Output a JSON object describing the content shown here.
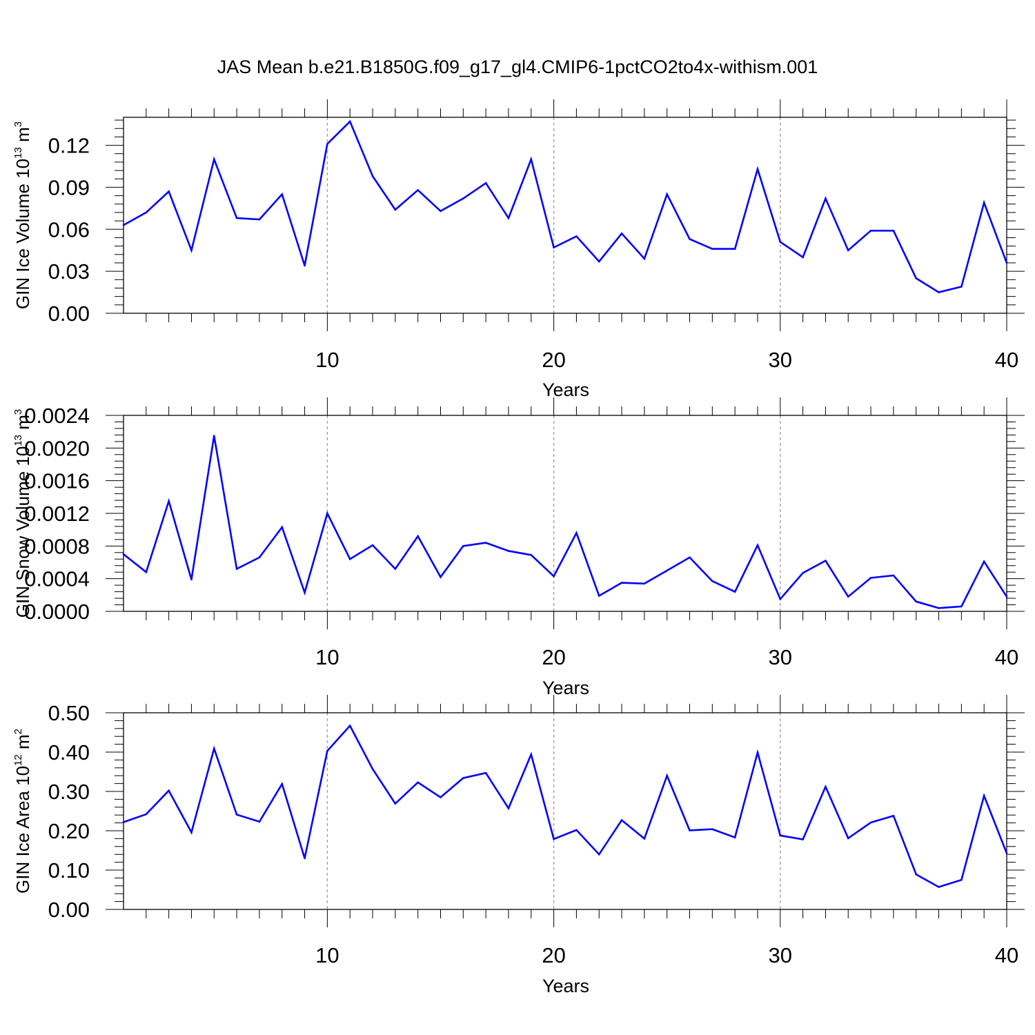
{
  "title": "JAS Mean b.e21.B1850G.f09_g17_gl4.CMIP6-1pctCO2to4x-withism.001",
  "colors": {
    "line": "#0000ff",
    "axis": "#000000",
    "grid": "#999999",
    "background": "#ffffff"
  },
  "chart_data": [
    {
      "type": "line",
      "xlabel": "Years",
      "ylabel": {
        "main": "GIN Ice Volume 10",
        "sup": "13",
        "rest": " m",
        "sup2": "3"
      },
      "xlim": [
        1,
        40
      ],
      "ylim": [
        0,
        0.14
      ],
      "xticks": [
        10,
        20,
        30,
        40
      ],
      "xtick_labels": [
        "10",
        "20",
        "30",
        "40"
      ],
      "yticks": [
        0,
        0.03,
        0.06,
        0.09,
        0.12
      ],
      "ytick_labels": [
        "0.00",
        "0.03",
        "0.06",
        "0.09",
        "0.12"
      ],
      "grid": "vertical dashed at 10, 20, 30",
      "x": [
        1,
        2,
        3,
        4,
        5,
        6,
        7,
        8,
        9,
        10,
        11,
        12,
        13,
        14,
        15,
        16,
        17,
        18,
        19,
        20,
        21,
        22,
        23,
        24,
        25,
        26,
        27,
        28,
        29,
        30,
        31,
        32,
        33,
        34,
        35,
        36,
        37,
        38,
        39,
        40
      ],
      "series": [
        {
          "values": [
            0.063,
            0.072,
            0.087,
            0.045,
            0.11,
            0.068,
            0.067,
            0.085,
            0.034,
            0.121,
            0.137,
            0.098,
            0.074,
            0.088,
            0.073,
            0.082,
            0.093,
            0.068,
            0.11,
            0.047,
            0.055,
            0.037,
            0.057,
            0.039,
            0.085,
            0.053,
            0.046,
            0.046,
            0.103,
            0.051,
            0.04,
            0.082,
            0.045,
            0.059,
            0.059,
            0.025,
            0.015,
            0.019,
            0.079,
            0.036
          ]
        }
      ]
    },
    {
      "type": "line",
      "xlabel": "Years",
      "ylabel": {
        "main": "GIN Snow Volume 10",
        "sup": "13",
        "rest": " m",
        "sup2": "3"
      },
      "xlim": [
        1,
        40
      ],
      "ylim": [
        0,
        0.0024
      ],
      "xticks": [
        10,
        20,
        30,
        40
      ],
      "xtick_labels": [
        "10",
        "20",
        "30",
        "40"
      ],
      "yticks": [
        0,
        0.0004,
        0.0008,
        0.0012,
        0.0016,
        0.002,
        0.0024
      ],
      "ytick_labels": [
        "0.0000",
        "0.0004",
        "0.0008",
        "0.0012",
        "0.0016",
        "0.0020",
        "0.0024"
      ],
      "grid": "vertical dashed at 10, 20, 30",
      "x": [
        1,
        2,
        3,
        4,
        5,
        6,
        7,
        8,
        9,
        10,
        11,
        12,
        13,
        14,
        15,
        16,
        17,
        18,
        19,
        20,
        21,
        22,
        23,
        24,
        25,
        26,
        27,
        28,
        29,
        30,
        31,
        32,
        33,
        34,
        35,
        36,
        37,
        38,
        39,
        40
      ],
      "series": [
        {
          "values": [
            0.0007,
            0.00048,
            0.00135,
            0.00039,
            0.00215,
            0.00052,
            0.00066,
            0.00103,
            0.00023,
            0.0012,
            0.00064,
            0.00081,
            0.00052,
            0.00092,
            0.00042,
            0.0008,
            0.00084,
            0.00074,
            0.00069,
            0.00043,
            0.00096,
            0.00019,
            0.00035,
            0.00034,
            0.0005,
            0.00066,
            0.00037,
            0.00024,
            0.00081,
            0.00015,
            0.00047,
            0.00062,
            0.00018,
            0.00041,
            0.00044,
            0.00012,
            4e-05,
            6e-05,
            0.00061,
            0.00018
          ]
        }
      ]
    },
    {
      "type": "line",
      "xlabel": "Years",
      "ylabel": {
        "main": "GIN Ice Area 10",
        "sup": "12",
        "rest": " m",
        "sup2": "2"
      },
      "xlim": [
        1,
        40
      ],
      "ylim": [
        0,
        0.5
      ],
      "xticks": [
        10,
        20,
        30,
        40
      ],
      "xtick_labels": [
        "10",
        "20",
        "30",
        "40"
      ],
      "yticks": [
        0,
        0.1,
        0.2,
        0.3,
        0.4,
        0.5
      ],
      "ytick_labels": [
        "0.00",
        "0.10",
        "0.20",
        "0.30",
        "0.40",
        "0.50"
      ],
      "grid": "vertical dashed at 10, 20, 30",
      "x": [
        1,
        2,
        3,
        4,
        5,
        6,
        7,
        8,
        9,
        10,
        11,
        12,
        13,
        14,
        15,
        16,
        17,
        18,
        19,
        20,
        21,
        22,
        23,
        24,
        25,
        26,
        27,
        28,
        29,
        30,
        31,
        32,
        33,
        34,
        35,
        36,
        37,
        38,
        39,
        40
      ],
      "series": [
        {
          "values": [
            0.222,
            0.242,
            0.302,
            0.196,
            0.409,
            0.241,
            0.223,
            0.319,
            0.13,
            0.403,
            0.467,
            0.357,
            0.269,
            0.323,
            0.285,
            0.334,
            0.347,
            0.257,
            0.394,
            0.179,
            0.202,
            0.14,
            0.227,
            0.18,
            0.34,
            0.201,
            0.204,
            0.183,
            0.399,
            0.188,
            0.178,
            0.312,
            0.181,
            0.221,
            0.238,
            0.089,
            0.057,
            0.075,
            0.289,
            0.143
          ]
        }
      ]
    }
  ]
}
